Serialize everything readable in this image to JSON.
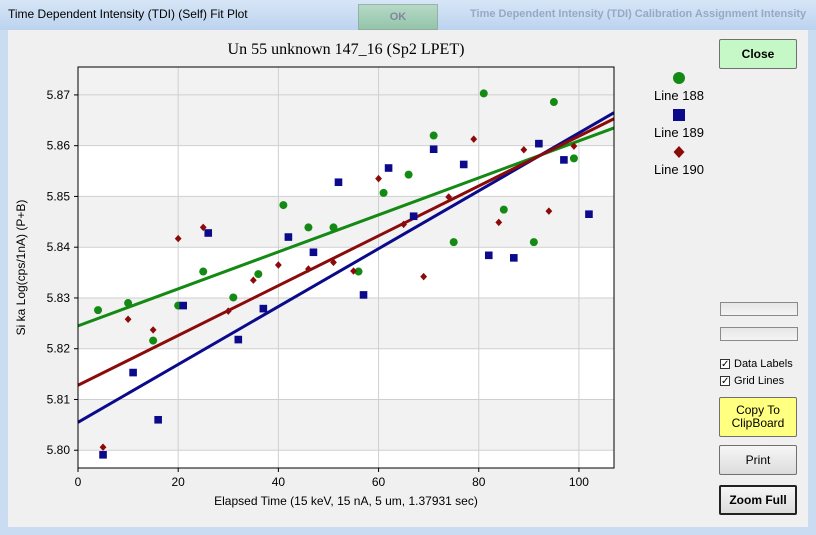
{
  "window": {
    "title": "Time Dependent Intensity (TDI) (Self) Fit Plot",
    "background_button_label": "OK",
    "background_title": "Time Dependent Intensity (TDI) Calibration Assignment Intensity"
  },
  "buttons": {
    "close": "Close",
    "copy_line1": "Copy To",
    "copy_line2": "ClipBoard",
    "print": "Print",
    "zoom_full": "Zoom Full"
  },
  "options": {
    "data_labels": {
      "label": "Data Labels",
      "checked": true
    },
    "grid_lines": {
      "label": "Grid Lines",
      "checked": true
    }
  },
  "chart_data": {
    "type": "scatter",
    "title": "Un   55  unknown 147_16 (Sp2 LPET)",
    "xlabel": "Elapsed Time (15 keV, 15 nA, 5 um, 1.37931 sec)",
    "ylabel": "Si ka Log(cps/1nA) (P+B)",
    "xlim": [
      0,
      107
    ],
    "ylim": [
      5.7965,
      5.8755
    ],
    "x_ticks": [
      0,
      20,
      40,
      60,
      80,
      100
    ],
    "y_ticks": [
      5.8,
      5.81,
      5.82,
      5.83,
      5.84,
      5.85,
      5.86,
      5.87
    ],
    "grid": true,
    "legend_position": "right",
    "series": [
      {
        "name": "Line 188",
        "color": "#138a13",
        "marker": "circle",
        "points": [
          [
            4,
            5.8276
          ],
          [
            10,
            5.829
          ],
          [
            15,
            5.8216
          ],
          [
            20,
            5.8285
          ],
          [
            25,
            5.8352
          ],
          [
            31,
            5.8301
          ],
          [
            36,
            5.8347
          ],
          [
            41,
            5.8483
          ],
          [
            46,
            5.8439
          ],
          [
            51,
            5.8439
          ],
          [
            56,
            5.8352
          ],
          [
            61,
            5.8507
          ],
          [
            66,
            5.8543
          ],
          [
            71,
            5.862
          ],
          [
            75,
            5.841
          ],
          [
            81,
            5.8703
          ],
          [
            85,
            5.8474
          ],
          [
            91,
            5.841
          ],
          [
            95,
            5.8686
          ],
          [
            99,
            5.8575
          ]
        ],
        "fit": [
          [
            0,
            5.8245
          ],
          [
            107,
            5.8635
          ]
        ]
      },
      {
        "name": "Line 189",
        "color": "#0a0a8a",
        "marker": "square",
        "points": [
          [
            5,
            5.7991
          ],
          [
            11,
            5.8153
          ],
          [
            16,
            5.806
          ],
          [
            21,
            5.8285
          ],
          [
            26,
            5.8428
          ],
          [
            32,
            5.8218
          ],
          [
            37,
            5.8279
          ],
          [
            42,
            5.842
          ],
          [
            47,
            5.839
          ],
          [
            52,
            5.8528
          ],
          [
            57,
            5.8306
          ],
          [
            62,
            5.8556
          ],
          [
            67,
            5.8461
          ],
          [
            71,
            5.8593
          ],
          [
            77,
            5.8563
          ],
          [
            82,
            5.8384
          ],
          [
            87,
            5.8379
          ],
          [
            92,
            5.8604
          ],
          [
            97,
            5.8572
          ],
          [
            102,
            5.8465
          ]
        ],
        "fit": [
          [
            0,
            5.8055
          ],
          [
            107,
            5.8665
          ]
        ]
      },
      {
        "name": "Line 190",
        "color": "#8b0a0a",
        "marker": "diamond",
        "points": [
          [
            5,
            5.8006
          ],
          [
            10,
            5.8258
          ],
          [
            15,
            5.8237
          ],
          [
            20,
            5.8417
          ],
          [
            25,
            5.8439
          ],
          [
            30,
            5.8274
          ],
          [
            35,
            5.8335
          ],
          [
            40,
            5.8365
          ],
          [
            46,
            5.8357
          ],
          [
            51,
            5.837
          ],
          [
            55,
            5.8353
          ],
          [
            60,
            5.8535
          ],
          [
            65,
            5.8445
          ],
          [
            69,
            5.8342
          ],
          [
            74,
            5.8499
          ],
          [
            79,
            5.8613
          ],
          [
            84,
            5.8449
          ],
          [
            89,
            5.8592
          ],
          [
            94,
            5.8471
          ],
          [
            99,
            5.8599
          ]
        ],
        "fit": [
          [
            0,
            5.8128
          ],
          [
            107,
            5.8653
          ]
        ]
      }
    ]
  }
}
